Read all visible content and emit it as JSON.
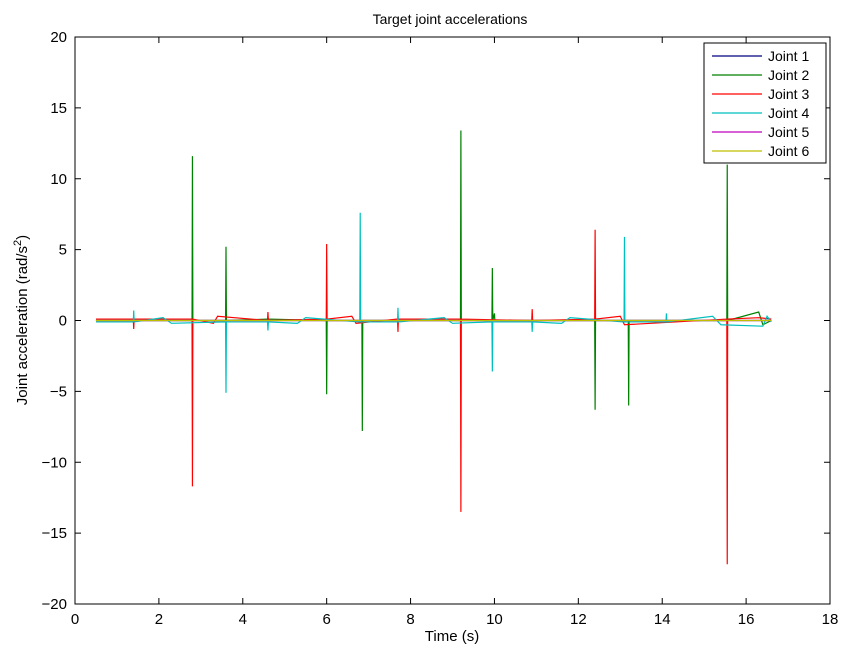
{
  "chart_data": {
    "type": "line",
    "title": "Target joint accelerations",
    "xlabel": "Time (s)",
    "ylabel": "Joint acceleration (rad/s²)",
    "xlim": [
      0,
      18
    ],
    "ylim": [
      -20,
      20
    ],
    "xticks": [
      0,
      2,
      4,
      6,
      8,
      10,
      12,
      14,
      16,
      18
    ],
    "yticks": [
      -20,
      -15,
      -10,
      -5,
      0,
      5,
      10,
      15,
      20
    ],
    "x_tick_labels": [
      "0",
      "2",
      "4",
      "6",
      "8",
      "10",
      "12",
      "14",
      "16",
      "18"
    ],
    "y_tick_labels": [
      "−20",
      "−15",
      "−10",
      "−5",
      "0",
      "5",
      "10",
      "15",
      "20"
    ],
    "grid": false,
    "legend_position": "top-right",
    "series": [
      {
        "name": "Joint 1",
        "color": "#000080",
        "x": [
          0.5,
          16.6
        ],
        "y": [
          0.0,
          0.0
        ]
      },
      {
        "name": "Joint 2",
        "color": "#008000",
        "x": [
          0.5,
          2.79,
          2.8,
          2.81,
          3.59,
          3.6,
          3.61,
          4.6,
          5.99,
          6.0,
          6.01,
          6.84,
          6.85,
          6.86,
          9.19,
          9.2,
          9.21,
          9.94,
          9.95,
          9.96,
          10.0,
          10.01,
          12.39,
          12.4,
          12.41,
          13.19,
          13.2,
          13.21,
          15.54,
          15.55,
          15.56,
          16.3,
          16.4,
          16.6
        ],
        "y": [
          0.0,
          0.0,
          11.6,
          0.0,
          0.0,
          5.2,
          0.0,
          0.1,
          0.0,
          -5.2,
          0.0,
          0.0,
          -7.8,
          0.0,
          0.0,
          13.4,
          0.0,
          0.0,
          3.7,
          0.0,
          0.5,
          0.0,
          0.0,
          -6.3,
          0.0,
          0.0,
          -6.0,
          0.0,
          0.0,
          11.0,
          0.0,
          0.6,
          -0.3,
          0.0
        ]
      },
      {
        "name": "Joint 3",
        "color": "#ff0000",
        "x": [
          0.5,
          1.39,
          1.4,
          1.41,
          2.79,
          2.8,
          2.81,
          3.3,
          3.4,
          4.59,
          4.6,
          4.61,
          5.99,
          6.0,
          6.01,
          6.6,
          6.7,
          7.69,
          7.7,
          7.71,
          9.19,
          9.2,
          9.21,
          10.89,
          10.9,
          10.91,
          12.39,
          12.4,
          12.41,
          13.0,
          13.1,
          15.54,
          15.55,
          15.56,
          16.3,
          16.6
        ],
        "y": [
          0.1,
          0.1,
          -0.6,
          0.1,
          0.1,
          -11.7,
          0.1,
          -0.2,
          0.3,
          0.0,
          0.6,
          0.0,
          0.1,
          5.4,
          0.1,
          0.3,
          -0.2,
          0.1,
          -0.8,
          0.1,
          0.1,
          -13.5,
          0.1,
          0.0,
          0.8,
          0.0,
          0.1,
          6.4,
          0.1,
          0.3,
          -0.3,
          0.1,
          -17.2,
          0.1,
          0.2,
          0.1
        ]
      },
      {
        "name": "Joint 4",
        "color": "#00bfbf",
        "x": [
          0.5,
          1.39,
          1.4,
          1.41,
          2.1,
          2.3,
          3.59,
          3.6,
          3.61,
          4.59,
          4.6,
          4.61,
          5.3,
          5.5,
          6.79,
          6.8,
          6.81,
          7.69,
          7.7,
          7.71,
          8.8,
          9.0,
          9.94,
          9.95,
          9.96,
          10.89,
          10.9,
          10.91,
          11.6,
          11.8,
          13.09,
          13.1,
          13.11,
          14.09,
          14.1,
          14.11,
          15.2,
          15.4,
          16.4,
          16.5,
          16.6
        ],
        "y": [
          -0.1,
          -0.1,
          0.7,
          -0.1,
          0.2,
          -0.2,
          -0.1,
          -5.1,
          -0.1,
          -0.1,
          -0.7,
          -0.1,
          -0.2,
          0.2,
          -0.1,
          7.6,
          -0.1,
          -0.1,
          0.9,
          -0.1,
          0.2,
          -0.2,
          -0.1,
          -3.6,
          -0.1,
          -0.1,
          -0.8,
          -0.1,
          -0.2,
          0.2,
          -0.1,
          5.9,
          -0.1,
          -0.1,
          0.5,
          -0.1,
          0.3,
          -0.3,
          -0.4,
          0.3,
          -0.1
        ]
      },
      {
        "name": "Joint 5",
        "color": "#bf00bf",
        "x": [
          0.5,
          16.6
        ],
        "y": [
          0.0,
          0.0
        ]
      },
      {
        "name": "Joint 6",
        "color": "#bfbf00",
        "x": [
          0.5,
          16.6
        ],
        "y": [
          0.0,
          0.0
        ]
      }
    ]
  }
}
